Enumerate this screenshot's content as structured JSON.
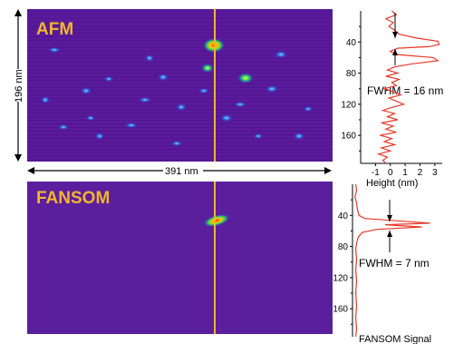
{
  "afm_panel": {
    "label": "AFM",
    "width_label": "391 nm",
    "height_label": "196 nm"
  },
  "fansom_panel": {
    "label": "FANSOM"
  },
  "colors": {
    "background": "#5a1a9b",
    "profile_line": "#e53a2a",
    "cut_line": "#f2b62a",
    "label": "#f2b62a"
  },
  "chart_data": [
    {
      "type": "line",
      "name": "AFM height profile",
      "xlabel": "Height (nm)",
      "ylabel": "",
      "xlim": [
        -2,
        3.5
      ],
      "ylim": [
        0,
        196
      ],
      "y_inverted": true,
      "xticks": [
        -1,
        0,
        1,
        2,
        3
      ],
      "yticks": [
        40,
        80,
        120,
        160
      ],
      "annotation": "FWHM = 16 nm",
      "points": [
        [
          0.1,
          0
        ],
        [
          0.4,
          5
        ],
        [
          -0.3,
          10
        ],
        [
          0.2,
          15
        ],
        [
          -0.1,
          20
        ],
        [
          0.3,
          25
        ],
        [
          0.6,
          30
        ],
        [
          1.8,
          35
        ],
        [
          3.2,
          39
        ],
        [
          3.3,
          43
        ],
        [
          2.6,
          46
        ],
        [
          0.5,
          48
        ],
        [
          0.0,
          52
        ],
        [
          0.4,
          56
        ],
        [
          2.9,
          60
        ],
        [
          3.2,
          64
        ],
        [
          1.5,
          68
        ],
        [
          0.3,
          72
        ],
        [
          -0.2,
          76
        ],
        [
          0.5,
          80
        ],
        [
          -0.3,
          84
        ],
        [
          0.6,
          88
        ],
        [
          0.1,
          92
        ],
        [
          0.4,
          96
        ],
        [
          -0.4,
          100
        ],
        [
          0.2,
          104
        ],
        [
          0.7,
          108
        ],
        [
          -0.1,
          112
        ],
        [
          0.4,
          116
        ],
        [
          0.9,
          120
        ],
        [
          0.1,
          124
        ],
        [
          -0.5,
          128
        ],
        [
          0.3,
          132
        ],
        [
          -0.2,
          136
        ],
        [
          0.5,
          140
        ],
        [
          -0.6,
          144
        ],
        [
          0.2,
          148
        ],
        [
          -0.3,
          152
        ],
        [
          0.4,
          156
        ],
        [
          -0.7,
          160
        ],
        [
          0.1,
          164
        ],
        [
          -0.4,
          168
        ],
        [
          0.3,
          172
        ],
        [
          -0.6,
          176
        ],
        [
          0.0,
          180
        ],
        [
          -0.8,
          184
        ],
        [
          -0.2,
          188
        ],
        [
          -0.5,
          192
        ],
        [
          -0.3,
          196
        ]
      ]
    },
    {
      "type": "line",
      "name": "FANSOM signal profile",
      "xlabel": "FANSOM Signal",
      "ylabel": "",
      "xlim": [
        0,
        1
      ],
      "ylim": [
        0,
        196
      ],
      "y_inverted": true,
      "yticks": [
        40,
        80,
        120,
        160
      ],
      "annotation": "FWHM = 7 nm",
      "points": [
        [
          0.04,
          0
        ],
        [
          0.05,
          8
        ],
        [
          0.03,
          16
        ],
        [
          0.05,
          24
        ],
        [
          0.06,
          32
        ],
        [
          0.08,
          40
        ],
        [
          0.15,
          44
        ],
        [
          0.55,
          47
        ],
        [
          0.95,
          50
        ],
        [
          0.4,
          52
        ],
        [
          0.85,
          55
        ],
        [
          0.3,
          58
        ],
        [
          0.12,
          62
        ],
        [
          0.07,
          68
        ],
        [
          0.05,
          76
        ],
        [
          0.04,
          84
        ],
        [
          0.05,
          96
        ],
        [
          0.04,
          110
        ],
        [
          0.05,
          124
        ],
        [
          0.04,
          140
        ],
        [
          0.05,
          156
        ],
        [
          0.04,
          172
        ],
        [
          0.05,
          186
        ],
        [
          0.04,
          196
        ]
      ]
    }
  ]
}
